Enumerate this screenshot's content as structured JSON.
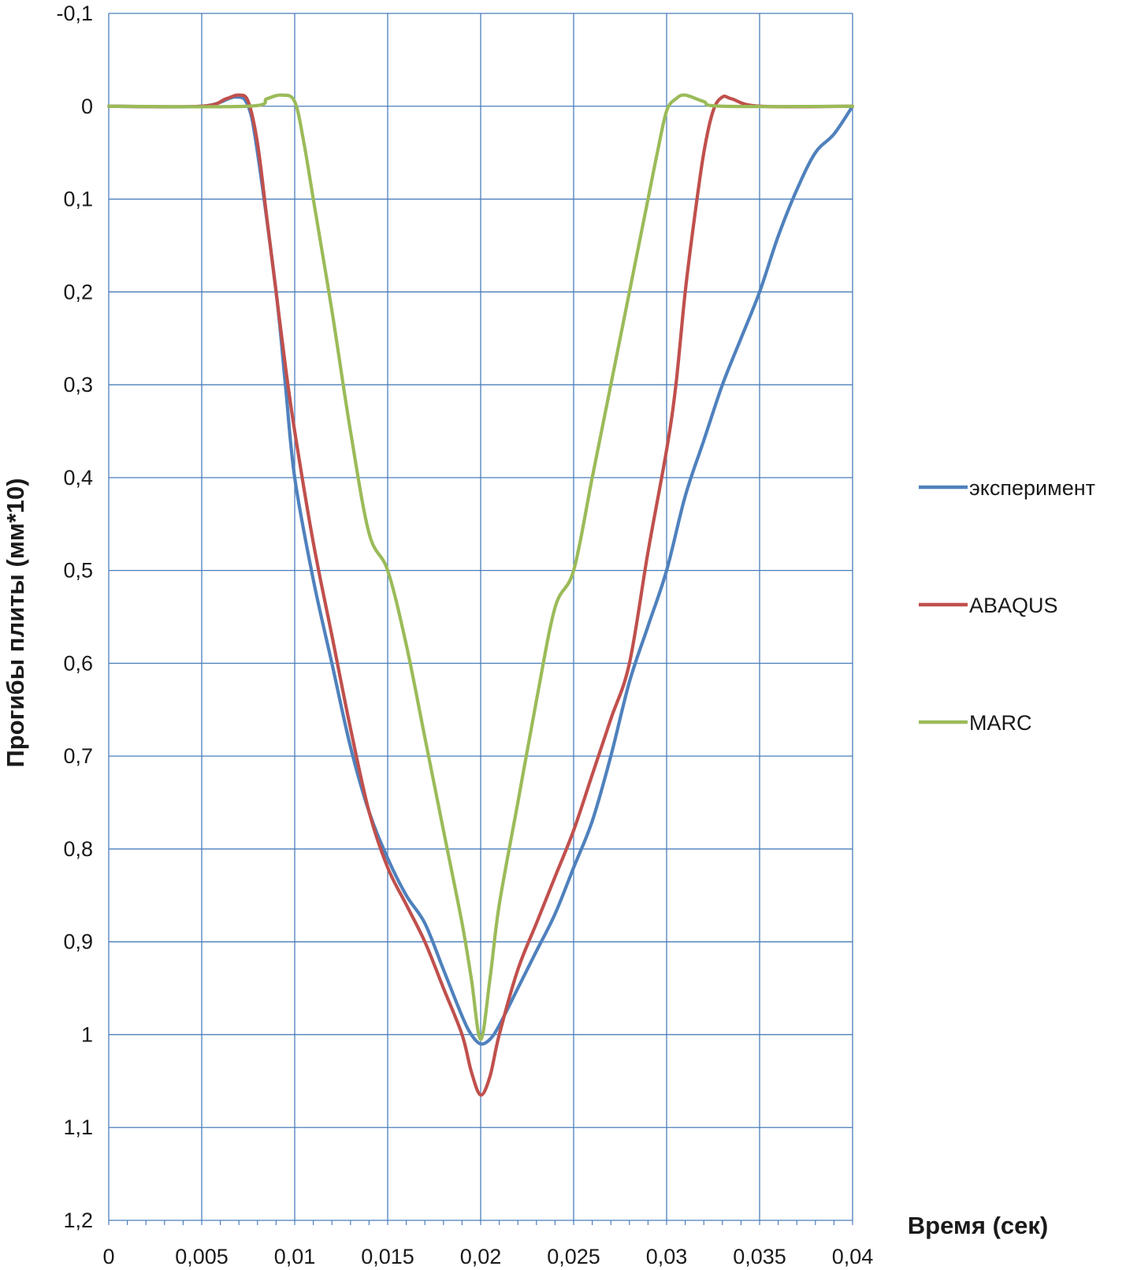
{
  "chart_data": {
    "type": "line",
    "xlabel": "Время (сек)",
    "ylabel": "Прогибы плиты (мм*10)",
    "xlim": [
      0,
      0.04
    ],
    "ylim": [
      -0.1,
      1.2
    ],
    "y_inverted": true,
    "grid": true,
    "legend_position": "right",
    "x_ticks": [
      "0",
      "0,005",
      "0,01",
      "0,015",
      "0,02",
      "0,025",
      "0,03",
      "0,035",
      "0,04"
    ],
    "y_ticks": [
      "-0,1",
      "0",
      "0,1",
      "0,2",
      "0,3",
      "0,4",
      "0,5",
      "0,6",
      "0,7",
      "0,8",
      "0,9",
      "1",
      "1,1",
      "1,2"
    ],
    "series": [
      {
        "name": "эксперимент",
        "color": "#4f81bd",
        "points": [
          [
            0,
            0
          ],
          [
            0.005,
            0
          ],
          [
            0.0068,
            -0.01
          ],
          [
            0.0075,
            0
          ],
          [
            0.008,
            0.05
          ],
          [
            0.009,
            0.2
          ],
          [
            0.0095,
            0.3
          ],
          [
            0.01,
            0.4
          ],
          [
            0.011,
            0.51
          ],
          [
            0.012,
            0.6
          ],
          [
            0.013,
            0.69
          ],
          [
            0.014,
            0.76
          ],
          [
            0.015,
            0.81
          ],
          [
            0.016,
            0.85
          ],
          [
            0.017,
            0.88
          ],
          [
            0.018,
            0.93
          ],
          [
            0.019,
            0.98
          ],
          [
            0.0195,
            1.0
          ],
          [
            0.02,
            1.01
          ],
          [
            0.0205,
            1.005
          ],
          [
            0.021,
            0.99
          ],
          [
            0.022,
            0.95
          ],
          [
            0.023,
            0.91
          ],
          [
            0.024,
            0.87
          ],
          [
            0.025,
            0.82
          ],
          [
            0.026,
            0.77
          ],
          [
            0.027,
            0.7
          ],
          [
            0.028,
            0.62
          ],
          [
            0.029,
            0.56
          ],
          [
            0.03,
            0.5
          ],
          [
            0.031,
            0.42
          ],
          [
            0.032,
            0.36
          ],
          [
            0.033,
            0.3
          ],
          [
            0.034,
            0.25
          ],
          [
            0.035,
            0.2
          ],
          [
            0.036,
            0.14
          ],
          [
            0.037,
            0.09
          ],
          [
            0.038,
            0.05
          ],
          [
            0.039,
            0.03
          ],
          [
            0.04,
            0
          ]
        ]
      },
      {
        "name": "ABAQUS",
        "color": "#c0504d",
        "points": [
          [
            0,
            0
          ],
          [
            0.005,
            0
          ],
          [
            0.0063,
            -0.008
          ],
          [
            0.007,
            -0.012
          ],
          [
            0.0075,
            -0.005
          ],
          [
            0.008,
            0.04
          ],
          [
            0.0085,
            0.12
          ],
          [
            0.009,
            0.2
          ],
          [
            0.0095,
            0.28
          ],
          [
            0.01,
            0.35
          ],
          [
            0.011,
            0.47
          ],
          [
            0.012,
            0.57
          ],
          [
            0.013,
            0.67
          ],
          [
            0.014,
            0.76
          ],
          [
            0.015,
            0.82
          ],
          [
            0.016,
            0.86
          ],
          [
            0.017,
            0.9
          ],
          [
            0.018,
            0.95
          ],
          [
            0.019,
            1.0
          ],
          [
            0.0195,
            1.04
          ],
          [
            0.02,
            1.065
          ],
          [
            0.0205,
            1.045
          ],
          [
            0.021,
            1.0
          ],
          [
            0.022,
            0.93
          ],
          [
            0.023,
            0.88
          ],
          [
            0.024,
            0.83
          ],
          [
            0.025,
            0.78
          ],
          [
            0.026,
            0.72
          ],
          [
            0.027,
            0.66
          ],
          [
            0.028,
            0.6
          ],
          [
            0.029,
            0.48
          ],
          [
            0.03,
            0.37
          ],
          [
            0.0305,
            0.3
          ],
          [
            0.031,
            0.2
          ],
          [
            0.0315,
            0.12
          ],
          [
            0.032,
            0.05
          ],
          [
            0.0325,
            0.005
          ],
          [
            0.033,
            -0.01
          ],
          [
            0.0335,
            -0.008
          ],
          [
            0.035,
            0
          ],
          [
            0.04,
            0
          ]
        ]
      },
      {
        "name": "MARC",
        "color": "#9bbb59",
        "points": [
          [
            0,
            0
          ],
          [
            0.0075,
            0
          ],
          [
            0.0085,
            -0.008
          ],
          [
            0.0093,
            -0.012
          ],
          [
            0.01,
            -0.005
          ],
          [
            0.0105,
            0.04
          ],
          [
            0.011,
            0.1
          ],
          [
            0.012,
            0.22
          ],
          [
            0.013,
            0.35
          ],
          [
            0.014,
            0.46
          ],
          [
            0.015,
            0.5
          ],
          [
            0.016,
            0.58
          ],
          [
            0.017,
            0.68
          ],
          [
            0.018,
            0.78
          ],
          [
            0.019,
            0.88
          ],
          [
            0.0195,
            0.94
          ],
          [
            0.02,
            1.005
          ],
          [
            0.0205,
            0.94
          ],
          [
            0.021,
            0.86
          ],
          [
            0.022,
            0.75
          ],
          [
            0.023,
            0.64
          ],
          [
            0.024,
            0.54
          ],
          [
            0.025,
            0.5
          ],
          [
            0.026,
            0.4
          ],
          [
            0.027,
            0.3
          ],
          [
            0.028,
            0.2
          ],
          [
            0.029,
            0.1
          ],
          [
            0.0295,
            0.05
          ],
          [
            0.03,
            0.005
          ],
          [
            0.0305,
            -0.008
          ],
          [
            0.031,
            -0.012
          ],
          [
            0.032,
            -0.005
          ],
          [
            0.033,
            0
          ],
          [
            0.04,
            0
          ]
        ]
      }
    ]
  }
}
